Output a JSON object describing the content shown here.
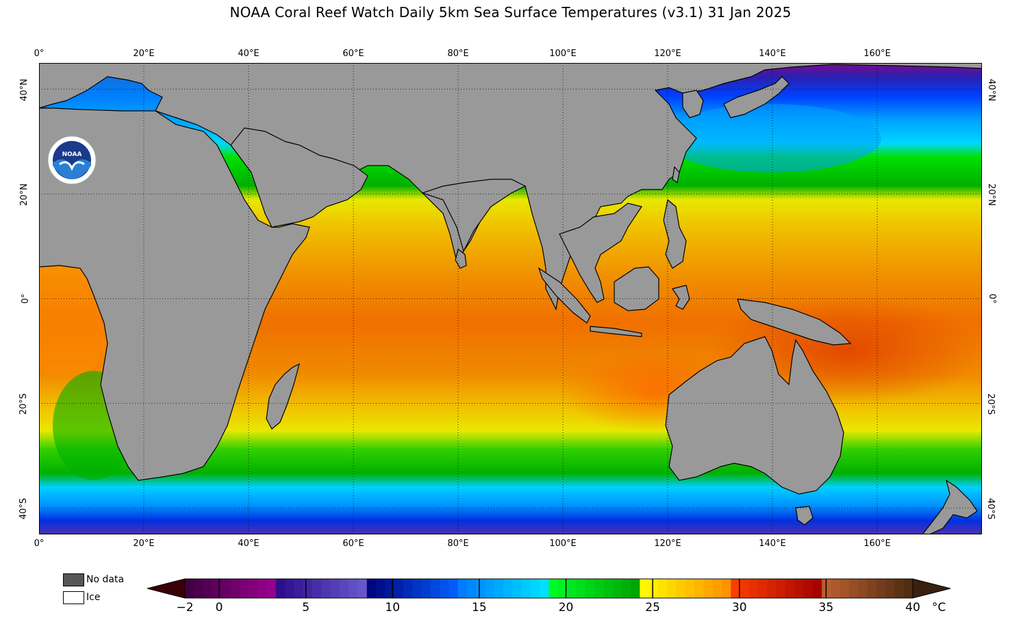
{
  "title": "NOAA Coral Reef Watch Daily 5km Sea Surface Temperatures  (v3.1)   31 Jan 2025",
  "map": {
    "lon_range": [
      0,
      180
    ],
    "lat_range": [
      -45,
      45
    ],
    "lon_ticks": [
      "0°",
      "20°E",
      "40°E",
      "60°E",
      "80°E",
      "100°E",
      "120°E",
      "140°E",
      "160°E"
    ],
    "lon_tick_values": [
      0,
      20,
      40,
      60,
      80,
      100,
      120,
      140,
      160
    ],
    "lat_ticks_left": [
      "40°N",
      "20°N",
      "0°",
      "20°S",
      "40°S"
    ],
    "lat_tick_values": [
      40,
      20,
      0,
      -20,
      -40
    ],
    "grid": "dotted",
    "land_color": "#999999",
    "logo": "noaa-logo",
    "logo_text": "NOAA"
  },
  "legend": {
    "no_data_label": "No data",
    "ice_label": "Ice",
    "no_data_color": "#555555",
    "ice_color": "#ffffff"
  },
  "colorbar": {
    "labels": [
      "−2",
      "0",
      "5",
      "10",
      "15",
      "20",
      "25",
      "30",
      "35",
      "40"
    ],
    "label_values": [
      -2,
      0,
      5,
      10,
      15,
      20,
      25,
      30,
      35,
      40
    ],
    "unit": "°C",
    "range": [
      -2,
      40
    ],
    "stops": [
      {
        "v": -2,
        "c": "#3a0006"
      },
      {
        "v": 0,
        "c": "#4a0010"
      },
      {
        "v": 0.01,
        "c": "#3d0040"
      },
      {
        "v": 5,
        "c": "#9b0090"
      },
      {
        "v": 5.01,
        "c": "#2a0a8a"
      },
      {
        "v": 10,
        "c": "#6a5acd"
      },
      {
        "v": 10.01,
        "c": "#00007a"
      },
      {
        "v": 15,
        "c": "#0060ff"
      },
      {
        "v": 15.01,
        "c": "#0078ff"
      },
      {
        "v": 20,
        "c": "#00e5ff"
      },
      {
        "v": 20.01,
        "c": "#00ff2a"
      },
      {
        "v": 25,
        "c": "#00a000"
      },
      {
        "v": 25.01,
        "c": "#ffff00"
      },
      {
        "v": 30,
        "c": "#ff8c00"
      },
      {
        "v": 30.01,
        "c": "#ff4000"
      },
      {
        "v": 35,
        "c": "#a00000"
      },
      {
        "v": 35.01,
        "c": "#c06030"
      },
      {
        "v": 40,
        "c": "#4a2a10"
      }
    ]
  }
}
